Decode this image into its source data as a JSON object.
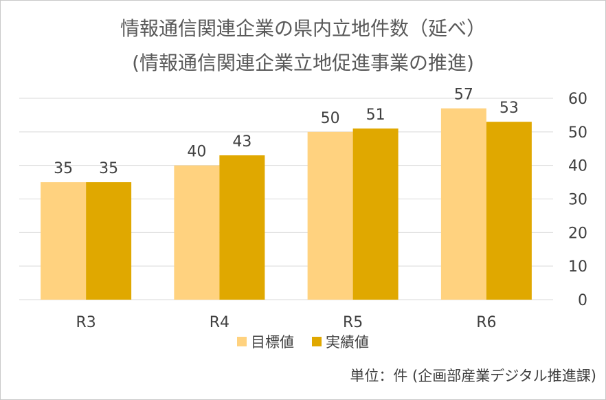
{
  "chart_data": {
    "type": "bar",
    "title": "情報通信関連企業の県内立地件数（延べ）",
    "subtitle": "(情報通信関連企業立地促進事業の推進)",
    "categories": [
      "R3",
      "R4",
      "R5",
      "R6"
    ],
    "series": [
      {
        "name": "目標値",
        "values": [
          35,
          40,
          50,
          57
        ],
        "color": "#FFD27F"
      },
      {
        "name": "実績値",
        "values": [
          35,
          43,
          51,
          53
        ],
        "color": "#E0A800"
      }
    ],
    "ylim": [
      0,
      60
    ],
    "yticks": [
      0,
      10,
      20,
      30,
      40,
      50,
      60
    ],
    "y_axis_side": "right",
    "grid": true,
    "legend_position": "bottom",
    "data_labels": true
  },
  "unit_note": "単位：件 (企画部産業デジタル推進課)",
  "colors": {
    "grid": "#d9d9d9",
    "text": "#404040",
    "title": "#595959"
  }
}
